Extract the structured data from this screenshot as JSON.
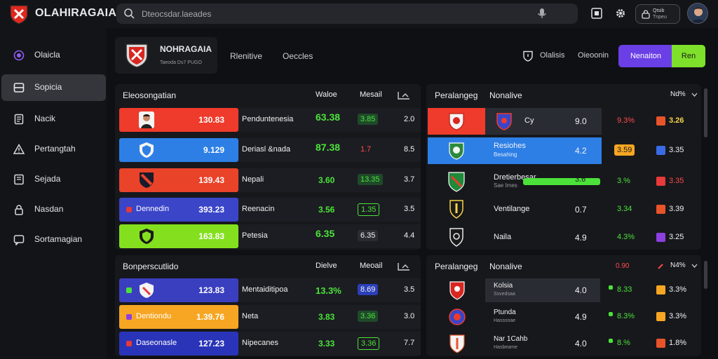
{
  "app": {
    "title": "OLAHIRAGAIA"
  },
  "search": {
    "placeholder": "Dteocsdar.laeades"
  },
  "account": {
    "line1": "Qtsib",
    "line2": "Tnpeu"
  },
  "icons": {
    "search": "search-icon",
    "mic": "mic-icon",
    "box": "box-icon",
    "gear": "gear-icon",
    "shield": "shield-icon"
  },
  "colors": {
    "accent_purple": "#6a3fe6",
    "accent_green": "#7ee02a",
    "up": "#4be33a",
    "down": "#ff4a4a"
  },
  "sidebar": {
    "items": [
      {
        "label": "Olaicla",
        "icon": "target-icon"
      },
      {
        "label": "Sopicia",
        "icon": "panel-icon"
      },
      {
        "label": "Nacik",
        "icon": "book-icon"
      },
      {
        "label": "Pertangtah",
        "icon": "warning-icon"
      },
      {
        "label": "Sejada",
        "icon": "list-icon"
      },
      {
        "label": "Nasdan",
        "icon": "lock-icon"
      },
      {
        "label": "Sortamagian",
        "icon": "chat-icon"
      }
    ]
  },
  "header": {
    "title": "NOHRAGAIA",
    "subtitle": "Taeoda Ds7 PUGO",
    "nav": [
      "Rlenitive",
      "Oeccles"
    ],
    "right_labels": [
      "Olalisis",
      "Oieoonin"
    ],
    "button_primary": "Nenaiton",
    "button_secondary": "Ren"
  },
  "panel_tl": {
    "title": "Eleosongatian",
    "cols": [
      "Waloe",
      "Mesail",
      "Sist"
    ],
    "rows": [
      {
        "left_name": "",
        "left_value": "130.83",
        "left_color": "#ef3b2b",
        "name": "Penduntenesia",
        "a": "63.38",
        "a_tone": "g",
        "b": "3.85",
        "c": "2.0"
      },
      {
        "left_name": "",
        "left_value": "9.129",
        "left_color": "#2d7fe6",
        "name": "Deriasl &nada",
        "a": "87.38",
        "a_tone": "g",
        "b": "1.7",
        "c": "8.5"
      },
      {
        "left_name": "",
        "left_value": "139.43",
        "left_color": "#e9432a",
        "name": "Nepali",
        "a": "3.60",
        "a_tone": "g",
        "b": "13.35",
        "c": "3.7"
      },
      {
        "left_name": "Dennedin",
        "left_value": "393.23",
        "left_color": "#3a45c8",
        "name": "Reenacin",
        "a": "3.56",
        "a_tone": "g",
        "b": "1.35",
        "c": "3.5"
      },
      {
        "left_name": "",
        "left_value": "163.83",
        "left_color": "#84e01f",
        "name": "Petesia",
        "a": "6.35",
        "a_tone": "g",
        "b": "6.35",
        "c": "4.4"
      }
    ]
  },
  "panel_bl": {
    "title": "Bonperscutlido",
    "cols": [
      "Dielve",
      "Meoail",
      "Sist"
    ],
    "rows": [
      {
        "left_name": "",
        "left_value": "123.83",
        "left_color": "#3a3fc0",
        "name": "Mentaiditipoa",
        "a": "13.3%",
        "a_tone": "g",
        "b": "8.69",
        "c": "3.5"
      },
      {
        "left_name": "Dentiondu",
        "left_value": "1.39.76",
        "left_color": "#f6a623",
        "name": "Neta",
        "a": "3.83",
        "a_tone": "g",
        "b": "3.36",
        "c": "3.0"
      },
      {
        "left_name": "Daseonasle",
        "left_value": "127.23",
        "left_color": "#2a34b8",
        "name": "Nipecanes",
        "a": "3.33",
        "a_tone": "g",
        "b": "3.36",
        "c": "7.7"
      }
    ]
  },
  "panel_tr": {
    "title": "Peralangeg",
    "title2": "Nonalive",
    "corner": "Nd%",
    "rows": [
      {
        "name": "Cy",
        "sub": "",
        "value": "9.0",
        "p": "9.3%",
        "p_tone": "r",
        "q": "3.26",
        "q_tone": "g",
        "row_color": "#ef3b2b"
      },
      {
        "name": "Resiohes",
        "sub": "Besahing",
        "value": "4.2",
        "p": "3.59",
        "p_tone": "w",
        "q": "3.35",
        "q_tone": "w",
        "row_color": "#2d7fe6"
      },
      {
        "name": "Dretierbesar",
        "sub": "Sae Imes",
        "value": "3.6",
        "p": "3.%",
        "p_tone": "g",
        "q": "3.35",
        "q_tone": "r",
        "row_color": ""
      },
      {
        "name": "Ventilange",
        "sub": "",
        "value": "0.7",
        "p": "3.34",
        "p_tone": "g",
        "q": "3.39",
        "q_tone": "w",
        "row_color": ""
      },
      {
        "name": "Naila",
        "sub": "",
        "value": "4.9",
        "p": "4.3%",
        "p_tone": "g",
        "q": "3.25",
        "q_tone": "w",
        "row_color": ""
      }
    ]
  },
  "panel_br": {
    "title": "Peralangeg",
    "title2": "Nonalive",
    "mid": "0.90",
    "corner": "N4%",
    "rows": [
      {
        "name": "Kolsia",
        "sub": "Ssvedsaa",
        "value": "4.0",
        "p": "8.33",
        "p_tone": "g",
        "q": "3.3%"
      },
      {
        "name": "Ptunda",
        "sub": "Hasssnae",
        "value": "4.9",
        "p": "8.3%",
        "p_tone": "g",
        "q": "3.3%"
      },
      {
        "name": "Nar 1Cahb",
        "sub": "Hasbeame",
        "value": "4.0",
        "p": "8.%",
        "p_tone": "g",
        "q": "1.8%"
      }
    ]
  }
}
